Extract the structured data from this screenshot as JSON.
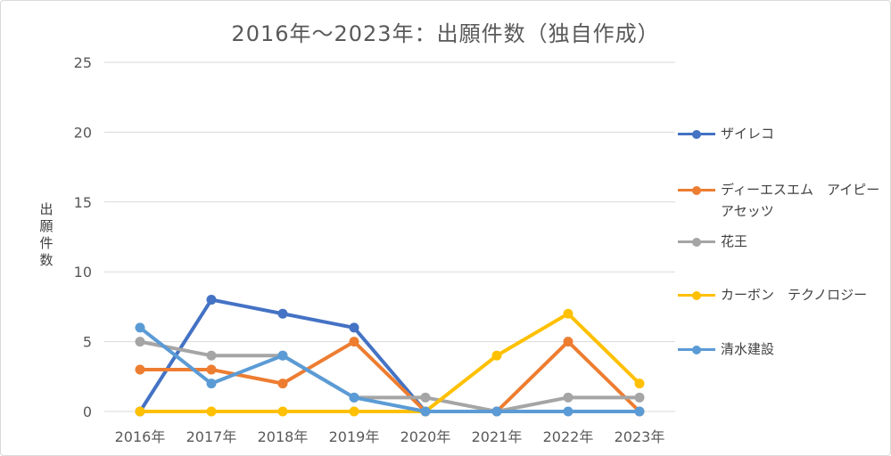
{
  "chart_data": {
    "type": "line",
    "title": "2016年～2023年：出願件数（独自作成）",
    "xlabel": "",
    "ylabel": "出願件数",
    "categories": [
      "2016年",
      "2017年",
      "2018年",
      "2019年",
      "2020年",
      "2021年",
      "2022年",
      "2023年"
    ],
    "ylim": [
      0,
      25
    ],
    "yticks": [
      0,
      5,
      10,
      15,
      20,
      25
    ],
    "grid": true,
    "legend_position": "right",
    "series": [
      {
        "name": "ザイレコ",
        "color": "#4472c4",
        "values": [
          0,
          8,
          7,
          6,
          0,
          null,
          null,
          null
        ]
      },
      {
        "name": "ディーエスエム　アイピー　アセッツ",
        "color": "#ed7d31",
        "values": [
          3,
          3,
          2,
          5,
          0,
          0,
          5,
          0
        ]
      },
      {
        "name": "花王",
        "color": "#a5a5a5",
        "values": [
          5,
          4,
          4,
          1,
          1,
          0,
          1,
          1
        ]
      },
      {
        "name": "カーボン　テクノロジー",
        "color": "#ffc000",
        "values": [
          0,
          0,
          0,
          0,
          0,
          4,
          7,
          2
        ]
      },
      {
        "name": "清水建設",
        "color": "#5b9bd5",
        "values": [
          6,
          2,
          4,
          1,
          0,
          0,
          0,
          0
        ]
      }
    ]
  }
}
